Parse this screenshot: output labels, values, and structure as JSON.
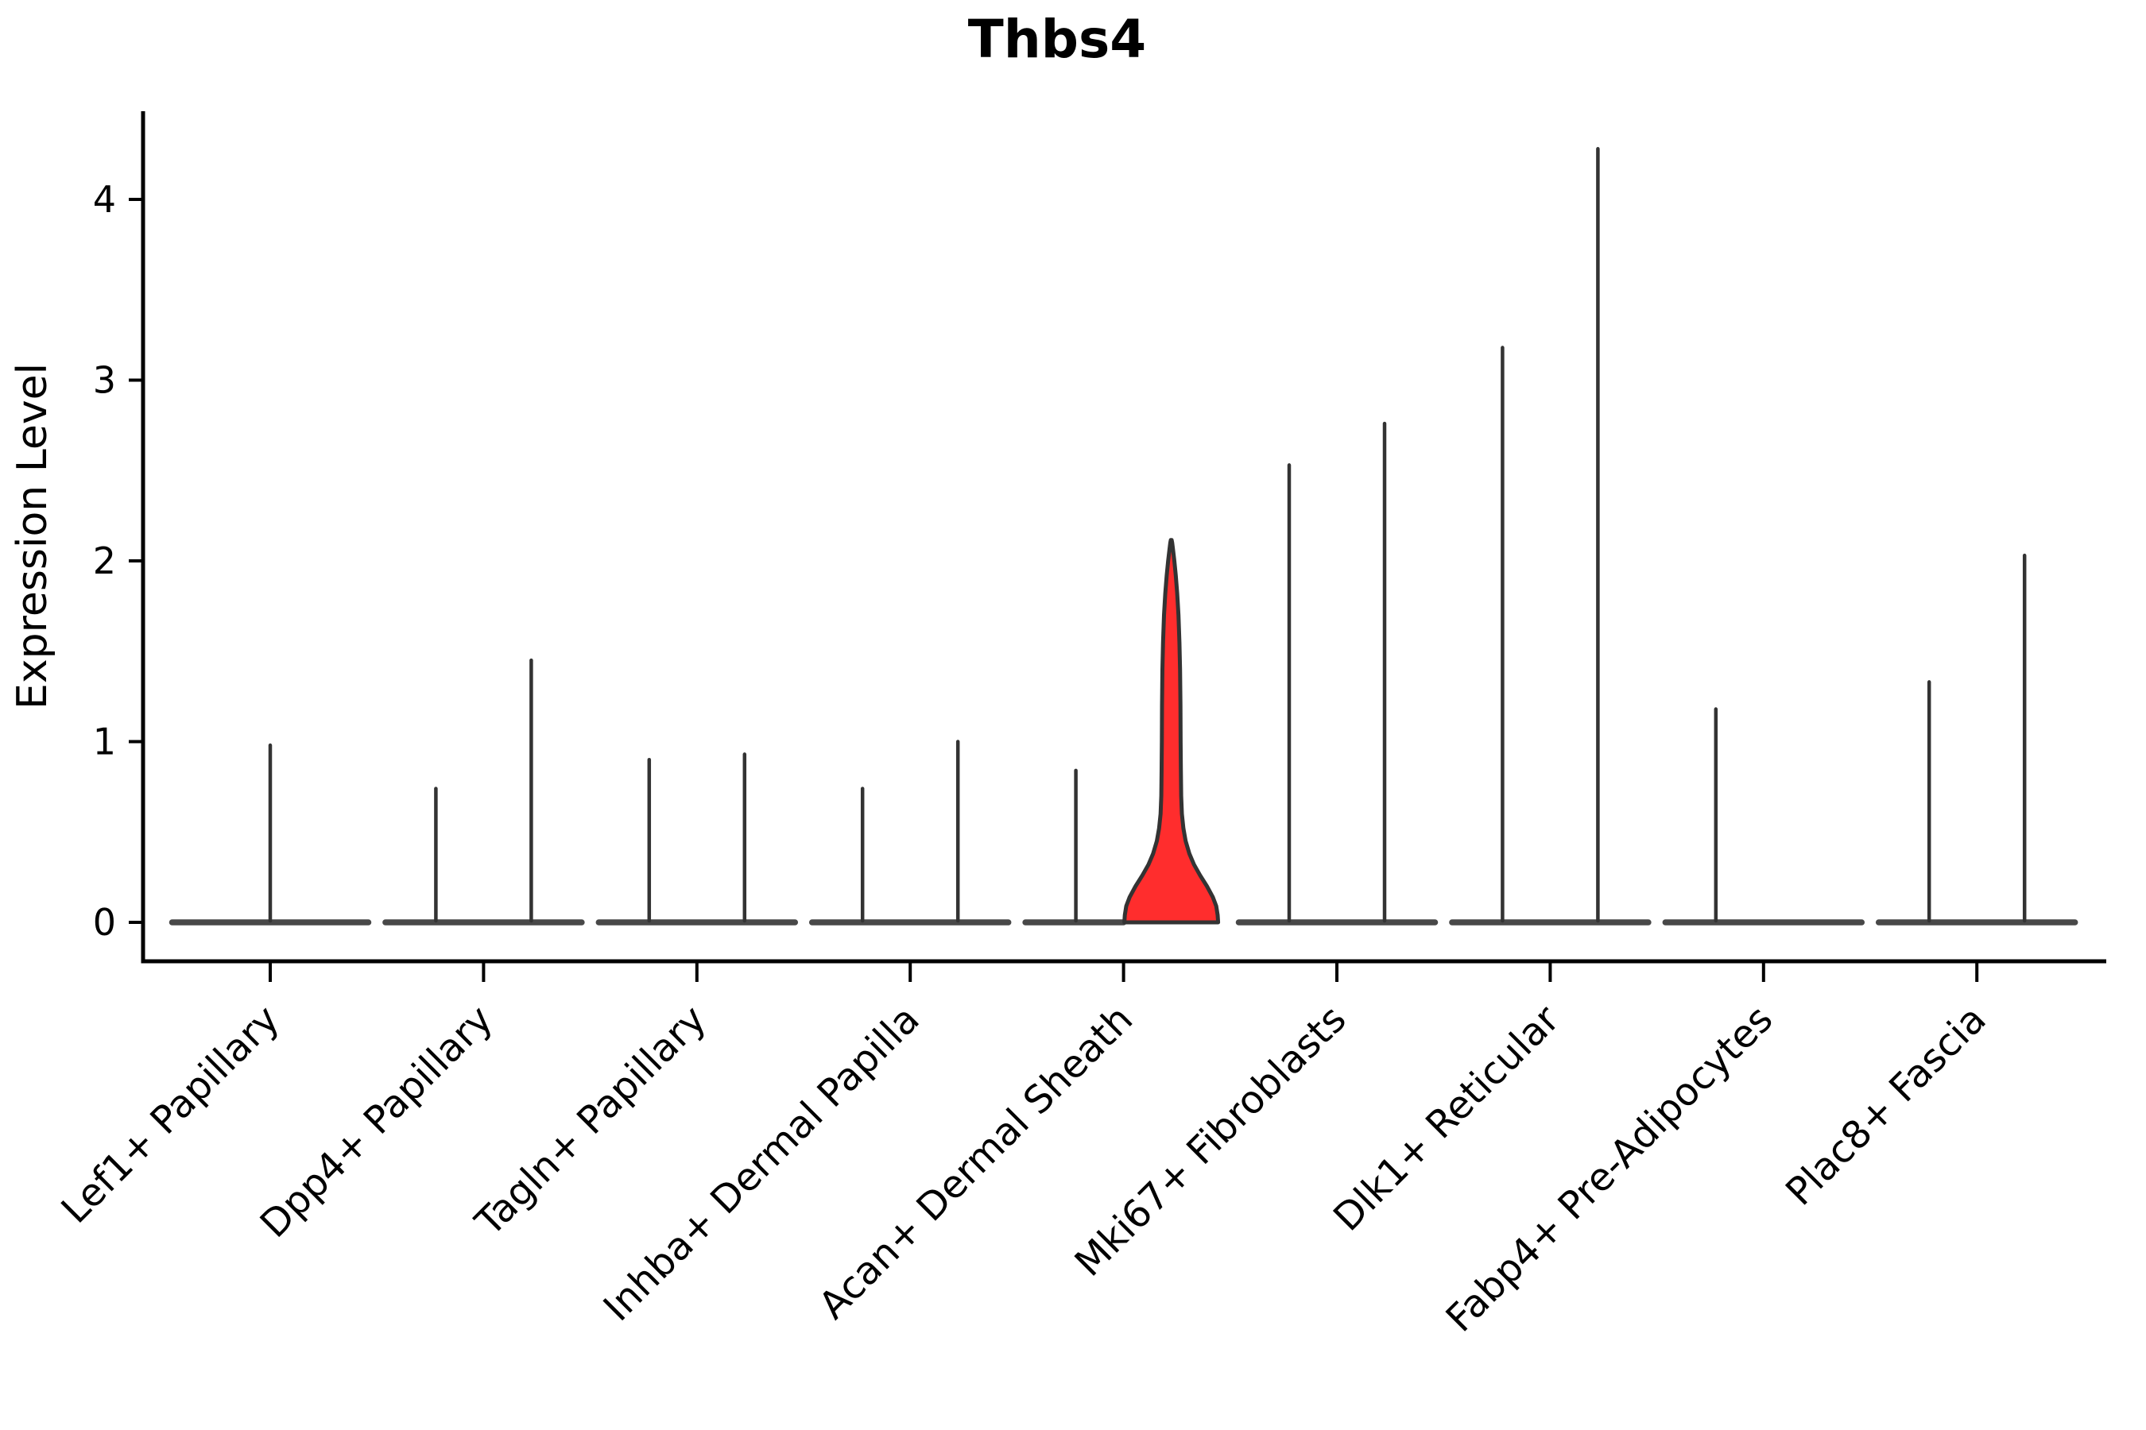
{
  "chart_data": {
    "type": "violin",
    "title": "Thbs4",
    "ylabel": "Expression Level",
    "xlabel": "",
    "yticks": [
      0,
      1,
      2,
      3,
      4
    ],
    "ylim": [
      -0.22,
      4.49
    ],
    "grid": false,
    "legend_position": "none",
    "categories": [
      "Lef1+ Papillary",
      "Dpp4+ Papillary",
      "Tagln+ Papillary",
      "Inhba+ Dermal Papilla",
      "Acan+ Dermal Sheath",
      "Mki67+ Fibroblasts",
      "Dlk1+ Reticular",
      "Fabp4+ Pre-Adipocytes",
      "Plac8+ Fascia"
    ],
    "series": [
      {
        "category": "Lef1+ Papillary",
        "violins": [
          {
            "position": "center",
            "max_expression": 0.98,
            "highlighted": false
          }
        ]
      },
      {
        "category": "Dpp4+ Papillary",
        "violins": [
          {
            "position": "left",
            "max_expression": 0.74,
            "highlighted": false
          },
          {
            "position": "right",
            "max_expression": 1.45,
            "highlighted": false
          }
        ]
      },
      {
        "category": "Tagln+ Papillary",
        "violins": [
          {
            "position": "left",
            "max_expression": 0.9,
            "highlighted": false
          },
          {
            "position": "right",
            "max_expression": 0.93,
            "highlighted": false
          }
        ]
      },
      {
        "category": "Inhba+ Dermal Papilla",
        "violins": [
          {
            "position": "left",
            "max_expression": 0.74,
            "highlighted": false
          },
          {
            "position": "right",
            "max_expression": 1.0,
            "highlighted": false
          }
        ]
      },
      {
        "category": "Acan+ Dermal Sheath",
        "violins": [
          {
            "position": "left",
            "max_expression": 0.84,
            "highlighted": false
          },
          {
            "position": "right",
            "max_expression": 2.11,
            "highlighted": true
          }
        ]
      },
      {
        "category": "Mki67+ Fibroblasts",
        "violins": [
          {
            "position": "left",
            "max_expression": 2.53,
            "highlighted": false
          },
          {
            "position": "right",
            "max_expression": 2.76,
            "highlighted": false
          }
        ]
      },
      {
        "category": "Dlk1+ Reticular",
        "violins": [
          {
            "position": "left",
            "max_expression": 3.18,
            "highlighted": false
          },
          {
            "position": "right",
            "max_expression": 4.28,
            "highlighted": false
          }
        ]
      },
      {
        "category": "Fabp4+ Pre-Adipocytes",
        "violins": [
          {
            "position": "left",
            "max_expression": 1.18,
            "highlighted": false
          },
          {
            "position": "right",
            "max_expression": 0.0,
            "highlighted": false
          }
        ]
      },
      {
        "category": "Plac8+ Fascia",
        "violins": [
          {
            "position": "left",
            "max_expression": 1.33,
            "highlighted": false
          },
          {
            "position": "right",
            "max_expression": 2.03,
            "highlighted": false
          }
        ]
      }
    ],
    "highlight_profile": [
      [
        0.0,
        0.96
      ],
      [
        0.04,
        0.95
      ],
      [
        0.09,
        0.92
      ],
      [
        0.14,
        0.85
      ],
      [
        0.2,
        0.73
      ],
      [
        0.26,
        0.59
      ],
      [
        0.32,
        0.465
      ],
      [
        0.38,
        0.37
      ],
      [
        0.45,
        0.295
      ],
      [
        0.52,
        0.248
      ],
      [
        0.6,
        0.218
      ],
      [
        0.7,
        0.203
      ],
      [
        0.85,
        0.196
      ],
      [
        1.0,
        0.192
      ],
      [
        1.2,
        0.188
      ],
      [
        1.4,
        0.18
      ],
      [
        1.55,
        0.168
      ],
      [
        1.7,
        0.148
      ],
      [
        1.82,
        0.122
      ],
      [
        1.92,
        0.092
      ],
      [
        2.0,
        0.063
      ],
      [
        2.06,
        0.038
      ],
      [
        2.1,
        0.02
      ],
      [
        2.115,
        0.008
      ]
    ]
  },
  "colors": {
    "highlight_fill": "#FF2D2D",
    "violin_outline": "#333333",
    "baseline_gray": "#484848",
    "axis_black": "#000000",
    "background": "#ffffff"
  }
}
